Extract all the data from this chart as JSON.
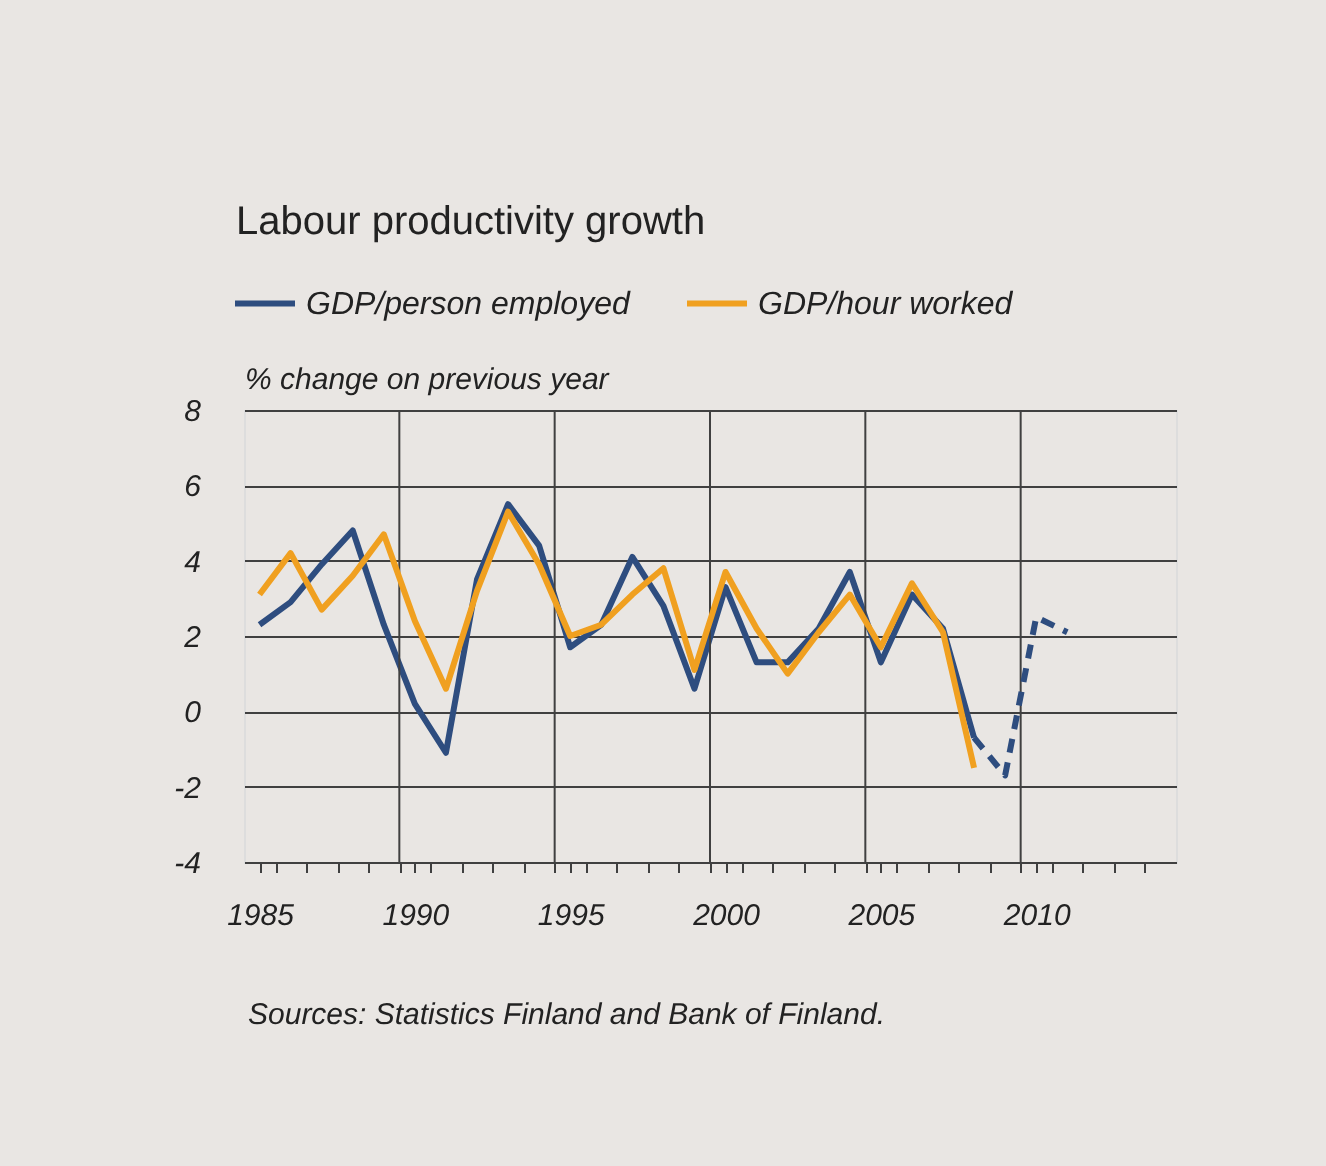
{
  "chart_data": {
    "type": "line",
    "title": "Labour productivity growth",
    "ylabel": "% change on previous year",
    "annotations": [
      "Sources: Statistics Finland and Bank of Finland."
    ],
    "xlim": [
      1984.5,
      2014.5
    ],
    "xticks": [
      1985,
      1990,
      1995,
      2000,
      2005,
      2010,
      {
        "value": 1985.5,
        "label": null
      },
      {
        "value": 1986.5,
        "label": null
      },
      {
        "value": 1987.5,
        "label": null
      },
      {
        "value": 1988.5,
        "label": null
      },
      {
        "value": 1989.5,
        "label": null
      },
      {
        "value": 1990.5,
        "label": null
      },
      {
        "value": 1991.5,
        "label": null
      },
      {
        "value": 1992.5,
        "label": null
      },
      {
        "value": 1993.5,
        "label": null
      },
      {
        "value": 1994.5,
        "label": null
      },
      {
        "value": 1995.5,
        "label": null
      },
      {
        "value": 1996.5,
        "label": null
      },
      {
        "value": 1997.5,
        "label": null
      },
      {
        "value": 1998.5,
        "label": null
      },
      {
        "value": 1999.5,
        "label": null
      },
      {
        "value": 2000.5,
        "label": null
      },
      {
        "value": 2001.5,
        "label": null
      },
      {
        "value": 2002.5,
        "label": null
      },
      {
        "value": 2003.5,
        "label": null
      },
      {
        "value": 2004.5,
        "label": null
      },
      {
        "value": 2005.5,
        "label": null
      },
      {
        "value": 2006.5,
        "label": null
      },
      {
        "value": 2007.5,
        "label": null
      },
      {
        "value": 2008.5,
        "label": null
      },
      {
        "value": 2009.5,
        "label": null
      },
      {
        "value": 2010.5,
        "label": null
      },
      {
        "value": 2011.5,
        "label": null
      },
      {
        "value": 2012.5,
        "label": null
      },
      {
        "value": 2013.5,
        "label": null
      }
    ],
    "ylim": [
      -4,
      8
    ],
    "yticks": [
      -4,
      -2,
      0,
      2,
      4,
      6,
      8
    ],
    "grid": "y",
    "legend": "top",
    "marker": "none",
    "ref_lines": [
      {
        "axis": "x",
        "value": 1989.5,
        "color": "#404040"
      },
      {
        "axis": "x",
        "value": 1994.5,
        "color": "#404040"
      },
      {
        "axis": "x",
        "value": 1999.5,
        "color": "#404040"
      },
      {
        "axis": "x",
        "value": 2004.5,
        "color": "#404040"
      },
      {
        "axis": "x",
        "value": 2009.5,
        "color": "#404040"
      }
    ],
    "series": [
      {
        "name": "GDP/person employed",
        "color": "#2e4d7f",
        "line_style": "solid",
        "x": [
          1985,
          1986,
          1987,
          1988,
          1989,
          1990,
          1991,
          1992,
          1993,
          1994,
          1995,
          1996,
          1997,
          1998,
          1999,
          2000,
          2001,
          2002,
          2003,
          2004,
          2005,
          2006,
          2007,
          2008
        ],
        "values": [
          2.3,
          2.9,
          3.9,
          4.8,
          2.3,
          0.2,
          -1.1,
          3.5,
          5.5,
          4.4,
          1.7,
          2.3,
          4.1,
          2.8,
          0.6,
          3.3,
          1.3,
          1.3,
          2.2,
          3.7,
          1.3,
          3.1,
          2.2,
          -0.7
        ]
      },
      {
        "name": "GDP/hour worked",
        "color": "#f0a020",
        "line_style": "solid",
        "x": [
          1985,
          1986,
          1987,
          1988,
          1989,
          1990,
          1991,
          1992,
          1993,
          1994,
          1995,
          1996,
          1997,
          1998,
          1999,
          2000,
          2001,
          2002,
          2003,
          2004,
          2005,
          2006,
          2007,
          2008
        ],
        "values": [
          3.1,
          4.2,
          2.7,
          3.6,
          4.7,
          2.4,
          0.6,
          3.2,
          5.3,
          3.9,
          2.0,
          2.3,
          3.1,
          3.8,
          1.1,
          3.7,
          2.2,
          1.0,
          2.1,
          3.1,
          1.7,
          3.4,
          2.1,
          -1.5
        ]
      },
      {
        "color": "#2e4d7f",
        "line_style": "dashed",
        "x": [
          2008,
          2009,
          2010,
          2011
        ],
        "values": [
          -0.7,
          -1.7,
          2.5,
          2.1
        ]
      }
    ]
  }
}
